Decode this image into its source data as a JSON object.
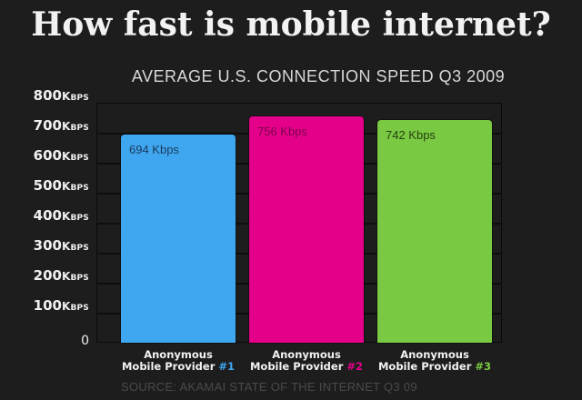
{
  "title": "How fast is mobile internet?",
  "subtitle": "AVERAGE U.S. CONNECTION SPEED Q3 2009",
  "y_axis": {
    "ticks": [
      {
        "num": "800",
        "unit": "Kbps"
      },
      {
        "num": "700",
        "unit": "Kbps"
      },
      {
        "num": "600",
        "unit": "Kbps"
      },
      {
        "num": "500",
        "unit": "Kbps"
      },
      {
        "num": "400",
        "unit": "Kbps"
      },
      {
        "num": "300",
        "unit": "Kbps"
      },
      {
        "num": "200",
        "unit": "Kbps"
      },
      {
        "num": "100",
        "unit": "Kbps"
      },
      {
        "num": "0",
        "unit": ""
      }
    ]
  },
  "bars": [
    {
      "label": "694 Kbps",
      "value": 694,
      "color": "#3fa7f0",
      "label_color": "#1b3a5a",
      "cat_line1": "Anonymous",
      "cat_line2": "Mobile Provider",
      "cat_num": "#1"
    },
    {
      "label": "756 Kbps",
      "value": 756,
      "color": "#e5008a",
      "label_color": "#7a0049",
      "cat_line1": "Anonymous",
      "cat_line2": "Mobile Provider",
      "cat_num": "#2"
    },
    {
      "label": "742 Kbps",
      "value": 742,
      "color": "#7ac943",
      "label_color": "#24400f",
      "cat_line1": "Anonymous",
      "cat_line2": "Mobile Provider",
      "cat_num": "#3"
    }
  ],
  "source": "SOURCE: AKAMAI STATE OF THE INTERNET Q3 09",
  "chart_data": {
    "type": "bar",
    "title": "How fast is mobile internet?",
    "subtitle": "AVERAGE U.S. CONNECTION SPEED Q3 2009",
    "categories": [
      "Anonymous Mobile Provider #1",
      "Anonymous Mobile Provider #2",
      "Anonymous Mobile Provider #3"
    ],
    "values": [
      694,
      756,
      742
    ],
    "data_labels": [
      "694 Kbps",
      "756 Kbps",
      "742 Kbps"
    ],
    "colors": [
      "#3fa7f0",
      "#e5008a",
      "#7ac943"
    ],
    "xlabel": "",
    "ylabel": "Kbps",
    "ylim": [
      0,
      800
    ],
    "yticks": [
      0,
      100,
      200,
      300,
      400,
      500,
      600,
      700,
      800
    ],
    "ytick_labels": [
      "0",
      "100Kbps",
      "200Kbps",
      "300Kbps",
      "400Kbps",
      "500Kbps",
      "600Kbps",
      "700Kbps",
      "800Kbps"
    ],
    "grid": true,
    "legend": null,
    "annotation": "SOURCE: AKAMAI STATE OF THE INTERNET Q3 09"
  }
}
